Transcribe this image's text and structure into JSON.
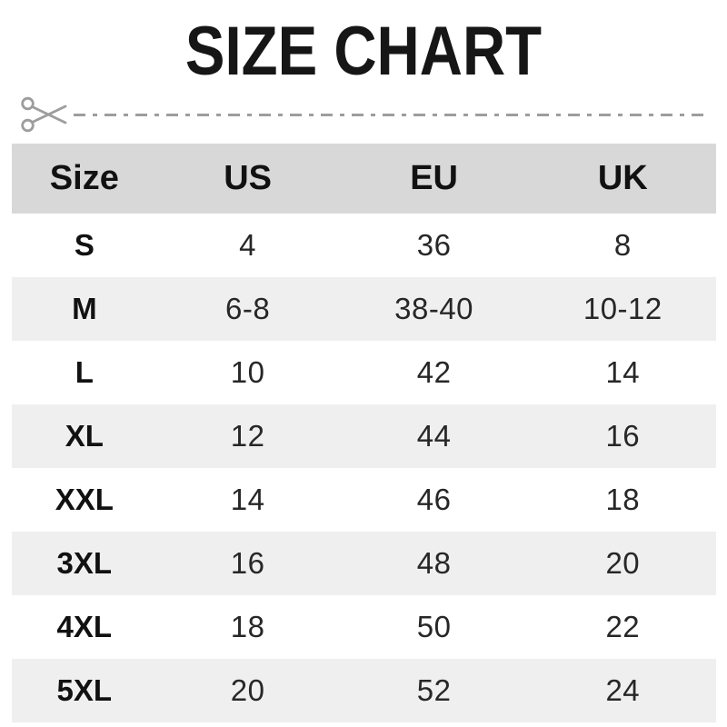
{
  "title": "SIZE CHART",
  "cut_line": {
    "icon": "scissors-icon",
    "style": "dash-dot",
    "color": "#9d9d9d"
  },
  "colors": {
    "header_bg": "#d8d8d8",
    "alt_row_bg": "#efefef",
    "row_bg": "#ffffff",
    "title_text": "#161616",
    "body_text": "#272727",
    "cutline_gray": "#9d9d9d"
  },
  "chart_data": {
    "type": "table",
    "title": "SIZE CHART",
    "columns": [
      "Size",
      "US",
      "EU",
      "UK"
    ],
    "rows": [
      [
        "S",
        "4",
        "36",
        "8"
      ],
      [
        "M",
        "6-8",
        "38-40",
        "10-12"
      ],
      [
        "L",
        "10",
        "42",
        "14"
      ],
      [
        "XL",
        "12",
        "44",
        "16"
      ],
      [
        "XXL",
        "14",
        "46",
        "18"
      ],
      [
        "3XL",
        "16",
        "48",
        "20"
      ],
      [
        "4XL",
        "18",
        "50",
        "22"
      ],
      [
        "5XL",
        "20",
        "52",
        "24"
      ]
    ],
    "layout_hints": {
      "header_background": "#d8d8d8",
      "zebra_striping": "odd data rows white, even data rows #efefef",
      "column_width_pct": [
        20.6,
        25.8,
        27.1,
        26.5
      ]
    }
  }
}
